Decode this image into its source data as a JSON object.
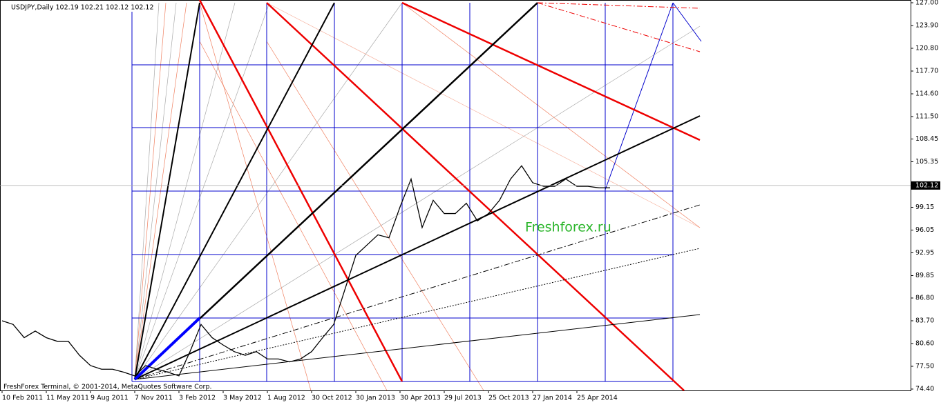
{
  "chart_data": {
    "type": "line",
    "title": "USDJPY,Daily  102.19 102.21 102.12 102.12",
    "footer": "FreshForex Terminal, © 2001-2014, MetaQuotes Software Corp.",
    "watermark": "Freshforex.ru",
    "last_price": 102.12,
    "categories": [
      "10 Feb 2011",
      null,
      null,
      null,
      "11 May 2011",
      null,
      null,
      null,
      "9 Aug 2011",
      null,
      null,
      null,
      "7 Nov 2011",
      null,
      null,
      null,
      "3 Feb 2012",
      null,
      null,
      null,
      "3 May 2012",
      null,
      null,
      null,
      "1 Aug 2012",
      null,
      null,
      null,
      "30 Oct 2012",
      null,
      null,
      null,
      "30 Jan 2013",
      null,
      null,
      null,
      "30 Apr 2013",
      null,
      null,
      null,
      "29 Jul 2013",
      null,
      null,
      null,
      "25 Oct 2013",
      null,
      null,
      null,
      "27 Jan 2014",
      null,
      null,
      null,
      "25 Apr 2014",
      null,
      null,
      null
    ],
    "series": [
      {
        "name": "USDJPY",
        "color": "#000000",
        "values": [
          83.7,
          83.2,
          81.4,
          82.3,
          81.4,
          80.9,
          80.9,
          79.0,
          77.6,
          77.1,
          77.1,
          76.7,
          76.2,
          77.6,
          77.1,
          76.7,
          76.2,
          79.5,
          83.2,
          81.4,
          80.4,
          79.5,
          79.0,
          79.5,
          78.5,
          78.5,
          78.1,
          78.5,
          79.5,
          81.4,
          83.2,
          87.9,
          92.6,
          94.0,
          95.4,
          95.0,
          99.2,
          103.0,
          96.4,
          100.1,
          98.3,
          98.3,
          99.7,
          97.3,
          98.3,
          100.1,
          103.0,
          104.8,
          102.5,
          102.0,
          102.0,
          103.0,
          102.0,
          102.0,
          101.8,
          101.8
        ]
      }
    ],
    "ylim": [
      74.4,
      127.0
    ],
    "yticks": [
      {
        "value": 127.0,
        "label": "127.00"
      },
      {
        "value": 123.9,
        "label": "123.90"
      },
      {
        "value": 120.8,
        "label": "120.80"
      },
      {
        "value": 117.7,
        "label": "117.70"
      },
      {
        "value": 114.6,
        "label": "114.60"
      },
      {
        "value": 111.5,
        "label": "111.50"
      },
      108.45,
      105.35,
      99.15,
      96.05,
      92.95,
      89.85,
      {
        "value": 86.8,
        "label": "86.80"
      },
      {
        "value": 83.7,
        "label": "83.70"
      },
      {
        "value": 80.6,
        "label": "80.60"
      },
      {
        "value": 77.5,
        "label": "77.50"
      },
      {
        "value": 74.4,
        "label": "74.40"
      }
    ]
  }
}
